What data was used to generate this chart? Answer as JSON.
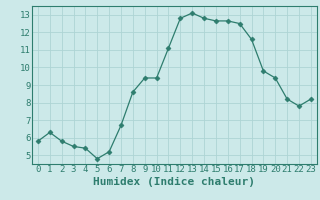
{
  "x": [
    0,
    1,
    2,
    3,
    4,
    5,
    6,
    7,
    8,
    9,
    10,
    11,
    12,
    13,
    14,
    15,
    16,
    17,
    18,
    19,
    20,
    21,
    22,
    23
  ],
  "y": [
    5.8,
    6.3,
    5.8,
    5.5,
    5.4,
    4.8,
    5.2,
    6.7,
    8.6,
    9.4,
    9.4,
    11.1,
    12.8,
    13.1,
    12.8,
    12.65,
    12.65,
    12.5,
    11.6,
    9.8,
    9.4,
    8.2,
    7.8,
    8.2
  ],
  "xlabel": "Humidex (Indice chaleur)",
  "ylim": [
    4.5,
    13.5
  ],
  "xlim": [
    -0.5,
    23.5
  ],
  "yticks": [
    5,
    6,
    7,
    8,
    9,
    10,
    11,
    12,
    13
  ],
  "xticks": [
    0,
    1,
    2,
    3,
    4,
    5,
    6,
    7,
    8,
    9,
    10,
    11,
    12,
    13,
    14,
    15,
    16,
    17,
    18,
    19,
    20,
    21,
    22,
    23
  ],
  "line_color": "#2e7d6e",
  "marker": "D",
  "marker_size": 2.5,
  "background_color": "#cce9e9",
  "grid_color": "#aed4d4",
  "tick_color": "#2e7d6e",
  "xlabel_color": "#2e7d6e",
  "xlabel_fontsize": 8,
  "tick_fontsize": 6.5
}
